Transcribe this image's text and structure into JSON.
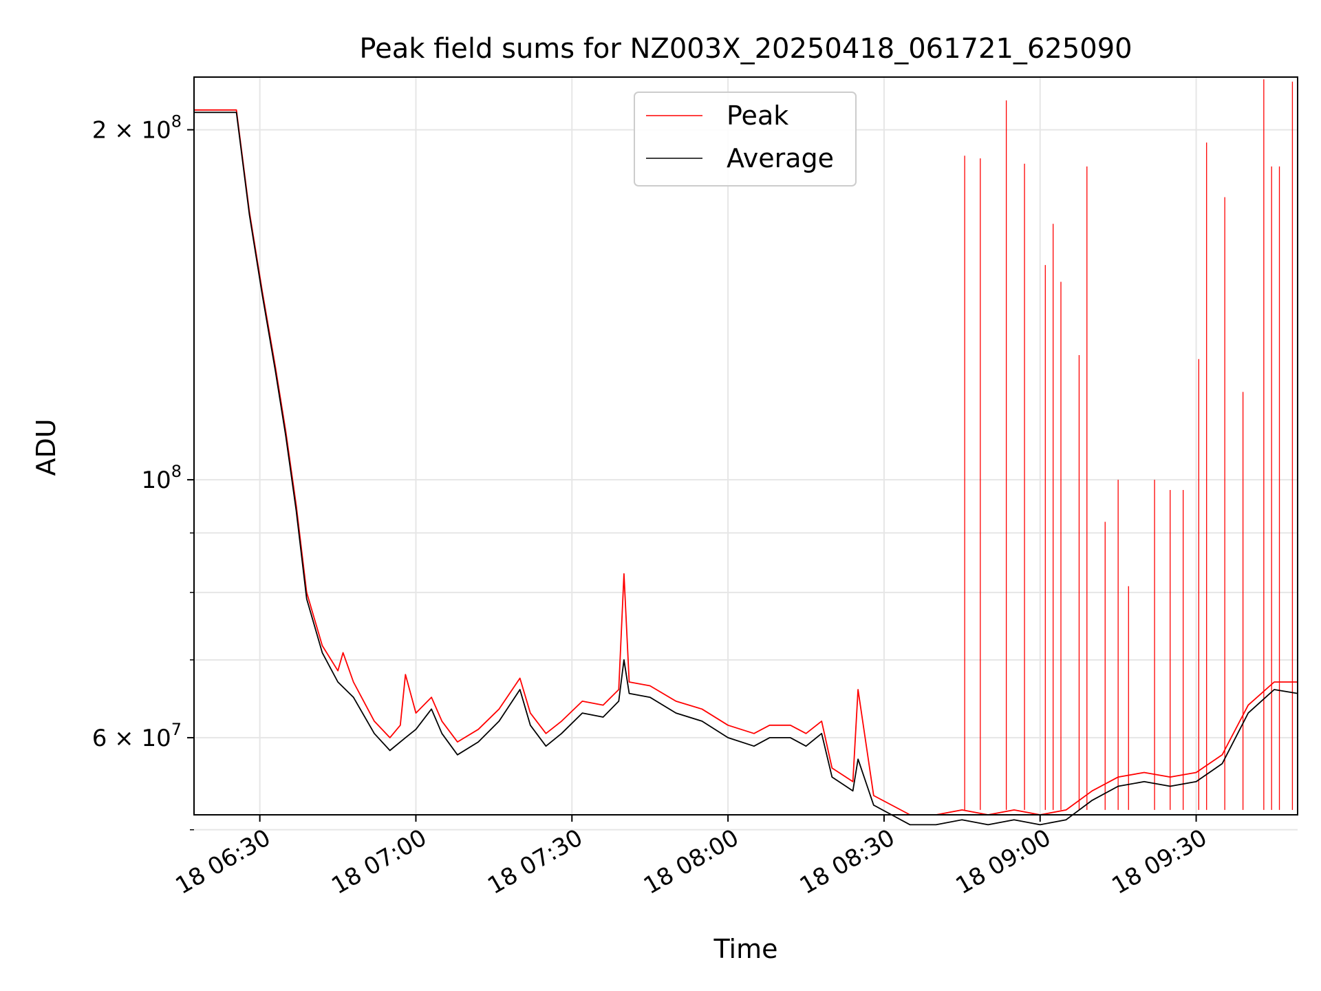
{
  "chart_data": {
    "type": "line",
    "title": "Peak field sums for NZ003X_20250418_061721_625090",
    "xlabel": "Time",
    "ylabel": "ADU",
    "yscale": "log",
    "ylim": [
      51500000,
      222000000
    ],
    "xlim": [
      "2025-04-18 06:17:21",
      "2025-04-18 09:49:30"
    ],
    "grid": true,
    "legend_position": "upper center",
    "x_ticks": [
      "18 06:30",
      "18 07:00",
      "18 07:30",
      "18 08:00",
      "18 08:30",
      "18 09:00",
      "18 09:30"
    ],
    "y_tick_labels": [
      {
        "value": 200000000,
        "label": "2 × 10^8",
        "base": "2 × 10",
        "exp": "8"
      },
      {
        "value": 100000000,
        "label": "10^8",
        "base": "10",
        "exp": "8"
      },
      {
        "value": 60000000,
        "label": "6 × 10^7",
        "base": "6 × 10",
        "exp": "7"
      }
    ],
    "y_minor_ticks": [
      90000000,
      80000000,
      70000000,
      50000000
    ],
    "series": [
      {
        "name": "Peak",
        "color": "#ff0000",
        "points": [
          [
            "2025-04-18 06:17:21",
            208000000
          ],
          [
            "2025-04-18 06:25:30",
            208000000
          ],
          [
            "2025-04-18 06:28:00",
            170000000
          ],
          [
            "2025-04-18 06:30:30",
            145000000
          ],
          [
            "2025-04-18 06:33:00",
            125000000
          ],
          [
            "2025-04-18 06:35:00",
            110000000
          ],
          [
            "2025-04-18 06:37:00",
            95000000
          ],
          [
            "2025-04-18 06:39:00",
            80000000
          ],
          [
            "2025-04-18 06:42:00",
            72000000
          ],
          [
            "2025-04-18 06:45:00",
            68500000
          ],
          [
            "2025-04-18 06:46:00",
            71000000
          ],
          [
            "2025-04-18 06:48:00",
            67000000
          ],
          [
            "2025-04-18 06:52:00",
            62000000
          ],
          [
            "2025-04-18 06:55:00",
            60000000
          ],
          [
            "2025-04-18 06:57:00",
            61500000
          ],
          [
            "2025-04-18 06:58:00",
            68000000
          ],
          [
            "2025-04-18 07:00:00",
            63000000
          ],
          [
            "2025-04-18 07:03:00",
            65000000
          ],
          [
            "2025-04-18 07:05:00",
            62000000
          ],
          [
            "2025-04-18 07:08:00",
            59500000
          ],
          [
            "2025-04-18 07:12:00",
            61000000
          ],
          [
            "2025-04-18 07:16:00",
            63500000
          ],
          [
            "2025-04-18 07:20:00",
            67500000
          ],
          [
            "2025-04-18 07:22:00",
            63000000
          ],
          [
            "2025-04-18 07:25:00",
            60500000
          ],
          [
            "2025-04-18 07:28:00",
            62000000
          ],
          [
            "2025-04-18 07:32:00",
            64500000
          ],
          [
            "2025-04-18 07:36:00",
            64000000
          ],
          [
            "2025-04-18 07:39:00",
            66000000
          ],
          [
            "2025-04-18 07:40:00",
            83000000
          ],
          [
            "2025-04-18 07:41:00",
            67000000
          ],
          [
            "2025-04-18 07:45:00",
            66500000
          ],
          [
            "2025-04-18 07:50:00",
            64500000
          ],
          [
            "2025-04-18 07:55:00",
            63500000
          ],
          [
            "2025-04-18 08:00:00",
            61500000
          ],
          [
            "2025-04-18 08:05:00",
            60500000
          ],
          [
            "2025-04-18 08:08:00",
            61500000
          ],
          [
            "2025-04-18 08:12:00",
            61500000
          ],
          [
            "2025-04-18 08:15:00",
            60500000
          ],
          [
            "2025-04-18 08:18:00",
            62000000
          ],
          [
            "2025-04-18 08:20:00",
            56500000
          ],
          [
            "2025-04-18 08:24:00",
            55000000
          ],
          [
            "2025-04-18 08:25:00",
            66000000
          ],
          [
            "2025-04-18 08:28:00",
            53500000
          ],
          [
            "2025-04-18 08:35:00",
            51500000
          ],
          [
            "2025-04-18 08:40:00",
            51500000
          ],
          [
            "2025-04-18 08:45:00",
            52000000
          ],
          [
            "2025-04-18 08:50:00",
            51500000
          ],
          [
            "2025-04-18 08:55:00",
            52000000
          ],
          [
            "2025-04-18 09:00:00",
            51500000
          ],
          [
            "2025-04-18 09:05:00",
            52000000
          ],
          [
            "2025-04-18 09:10:00",
            54000000
          ],
          [
            "2025-04-18 09:15:00",
            55500000
          ],
          [
            "2025-04-18 09:20:00",
            56000000
          ],
          [
            "2025-04-18 09:25:00",
            55500000
          ],
          [
            "2025-04-18 09:30:00",
            56000000
          ],
          [
            "2025-04-18 09:35:00",
            58000000
          ],
          [
            "2025-04-18 09:40:00",
            64000000
          ],
          [
            "2025-04-18 09:45:00",
            67000000
          ],
          [
            "2025-04-18 09:49:30",
            67000000
          ]
        ],
        "spikes": [
          [
            "2025-04-18 08:45:30",
            190000000
          ],
          [
            "2025-04-18 08:48:30",
            189000000
          ],
          [
            "2025-04-18 08:53:30",
            212000000
          ],
          [
            "2025-04-18 08:57:00",
            187000000
          ],
          [
            "2025-04-18 09:01:00",
            153000000
          ],
          [
            "2025-04-18 09:02:30",
            166000000
          ],
          [
            "2025-04-18 09:04:00",
            148000000
          ],
          [
            "2025-04-18 09:07:30",
            128000000
          ],
          [
            "2025-04-18 09:09:00",
            186000000
          ],
          [
            "2025-04-18 09:12:30",
            92000000
          ],
          [
            "2025-04-18 09:15:00",
            100000000
          ],
          [
            "2025-04-18 09:17:00",
            81000000
          ],
          [
            "2025-04-18 09:22:00",
            100000000
          ],
          [
            "2025-04-18 09:25:00",
            98000000
          ],
          [
            "2025-04-18 09:27:30",
            98000000
          ],
          [
            "2025-04-18 09:30:30",
            127000000
          ],
          [
            "2025-04-18 09:32:00",
            195000000
          ],
          [
            "2025-04-18 09:35:30",
            175000000
          ],
          [
            "2025-04-18 09:39:00",
            119000000
          ],
          [
            "2025-04-18 09:43:00",
            221000000
          ],
          [
            "2025-04-18 09:44:30",
            186000000
          ],
          [
            "2025-04-18 09:46:00",
            186000000
          ],
          [
            "2025-04-18 09:48:30",
            220000000
          ]
        ]
      },
      {
        "name": "Average",
        "color": "#000000",
        "points": [
          [
            "2025-04-18 06:17:21",
            207000000
          ],
          [
            "2025-04-18 06:25:30",
            207000000
          ],
          [
            "2025-04-18 06:28:00",
            169000000
          ],
          [
            "2025-04-18 06:30:30",
            144000000
          ],
          [
            "2025-04-18 06:33:00",
            124000000
          ],
          [
            "2025-04-18 06:35:00",
            109000000
          ],
          [
            "2025-04-18 06:37:00",
            94000000
          ],
          [
            "2025-04-18 06:39:00",
            79000000
          ],
          [
            "2025-04-18 06:42:00",
            71000000
          ],
          [
            "2025-04-18 06:45:00",
            67000000
          ],
          [
            "2025-04-18 06:48:00",
            65000000
          ],
          [
            "2025-04-18 06:52:00",
            60500000
          ],
          [
            "2025-04-18 06:55:00",
            58500000
          ],
          [
            "2025-04-18 06:58:00",
            60000000
          ],
          [
            "2025-04-18 07:00:00",
            61000000
          ],
          [
            "2025-04-18 07:03:00",
            63500000
          ],
          [
            "2025-04-18 07:05:00",
            60500000
          ],
          [
            "2025-04-18 07:08:00",
            58000000
          ],
          [
            "2025-04-18 07:12:00",
            59500000
          ],
          [
            "2025-04-18 07:16:00",
            62000000
          ],
          [
            "2025-04-18 07:20:00",
            66000000
          ],
          [
            "2025-04-18 07:22:00",
            61500000
          ],
          [
            "2025-04-18 07:25:00",
            59000000
          ],
          [
            "2025-04-18 07:28:00",
            60500000
          ],
          [
            "2025-04-18 07:32:00",
            63000000
          ],
          [
            "2025-04-18 07:36:00",
            62500000
          ],
          [
            "2025-04-18 07:39:00",
            64500000
          ],
          [
            "2025-04-18 07:40:00",
            70000000
          ],
          [
            "2025-04-18 07:41:00",
            65500000
          ],
          [
            "2025-04-18 07:45:00",
            65000000
          ],
          [
            "2025-04-18 07:50:00",
            63000000
          ],
          [
            "2025-04-18 07:55:00",
            62000000
          ],
          [
            "2025-04-18 08:00:00",
            60000000
          ],
          [
            "2025-04-18 08:05:00",
            59000000
          ],
          [
            "2025-04-18 08:08:00",
            60000000
          ],
          [
            "2025-04-18 08:12:00",
            60000000
          ],
          [
            "2025-04-18 08:15:00",
            59000000
          ],
          [
            "2025-04-18 08:18:00",
            60500000
          ],
          [
            "2025-04-18 08:20:00",
            55500000
          ],
          [
            "2025-04-18 08:24:00",
            54000000
          ],
          [
            "2025-04-18 08:25:00",
            57500000
          ],
          [
            "2025-04-18 08:28:00",
            52500000
          ],
          [
            "2025-04-18 08:35:00",
            50500000
          ],
          [
            "2025-04-18 08:40:00",
            50500000
          ],
          [
            "2025-04-18 08:45:00",
            51000000
          ],
          [
            "2025-04-18 08:50:00",
            50500000
          ],
          [
            "2025-04-18 08:55:00",
            51000000
          ],
          [
            "2025-04-18 09:00:00",
            50500000
          ],
          [
            "2025-04-18 09:05:00",
            51000000
          ],
          [
            "2025-04-18 09:10:00",
            53000000
          ],
          [
            "2025-04-18 09:15:00",
            54500000
          ],
          [
            "2025-04-18 09:20:00",
            55000000
          ],
          [
            "2025-04-18 09:25:00",
            54500000
          ],
          [
            "2025-04-18 09:30:00",
            55000000
          ],
          [
            "2025-04-18 09:35:00",
            57000000
          ],
          [
            "2025-04-18 09:40:00",
            63000000
          ],
          [
            "2025-04-18 09:45:00",
            66000000
          ],
          [
            "2025-04-18 09:49:30",
            65500000
          ]
        ]
      }
    ]
  }
}
